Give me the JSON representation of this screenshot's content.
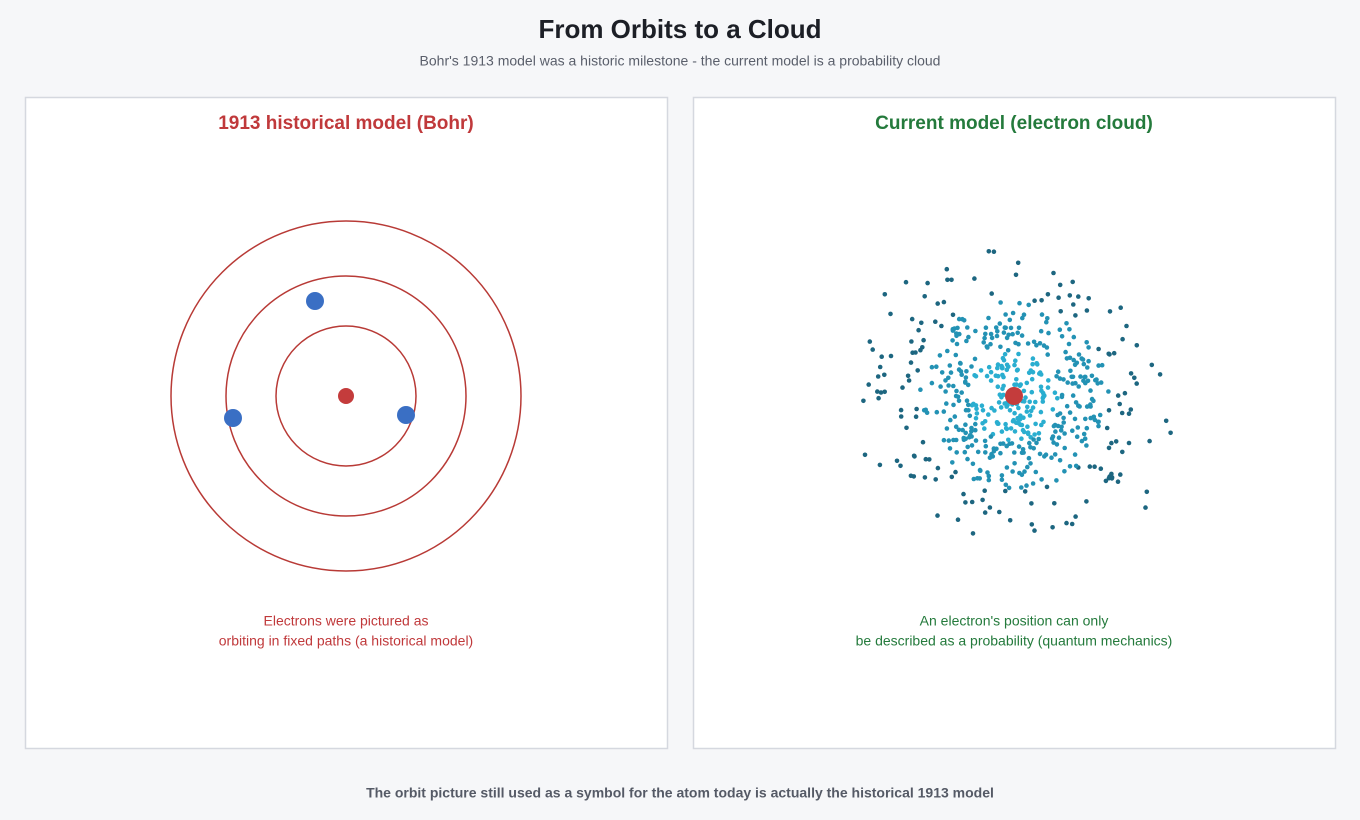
{
  "header": {
    "title": "From Orbits to a Cloud",
    "subtitle": "Bohr's 1913 model was a historic milestone - the current model is a probability cloud"
  },
  "panels": [
    {
      "title": "1913 historical model (Bohr)",
      "caption": [
        "Electrons were pictured as",
        "orbiting in fixed paths (a historical model)"
      ]
    },
    {
      "title": "Current model (electron cloud)",
      "caption": [
        "An electron's position can only",
        "be described as a probability (quantum mechanics)"
      ]
    }
  ],
  "footer": "The orbit picture still used as a symbol for the atom today is actually the historical 1913 model"
}
